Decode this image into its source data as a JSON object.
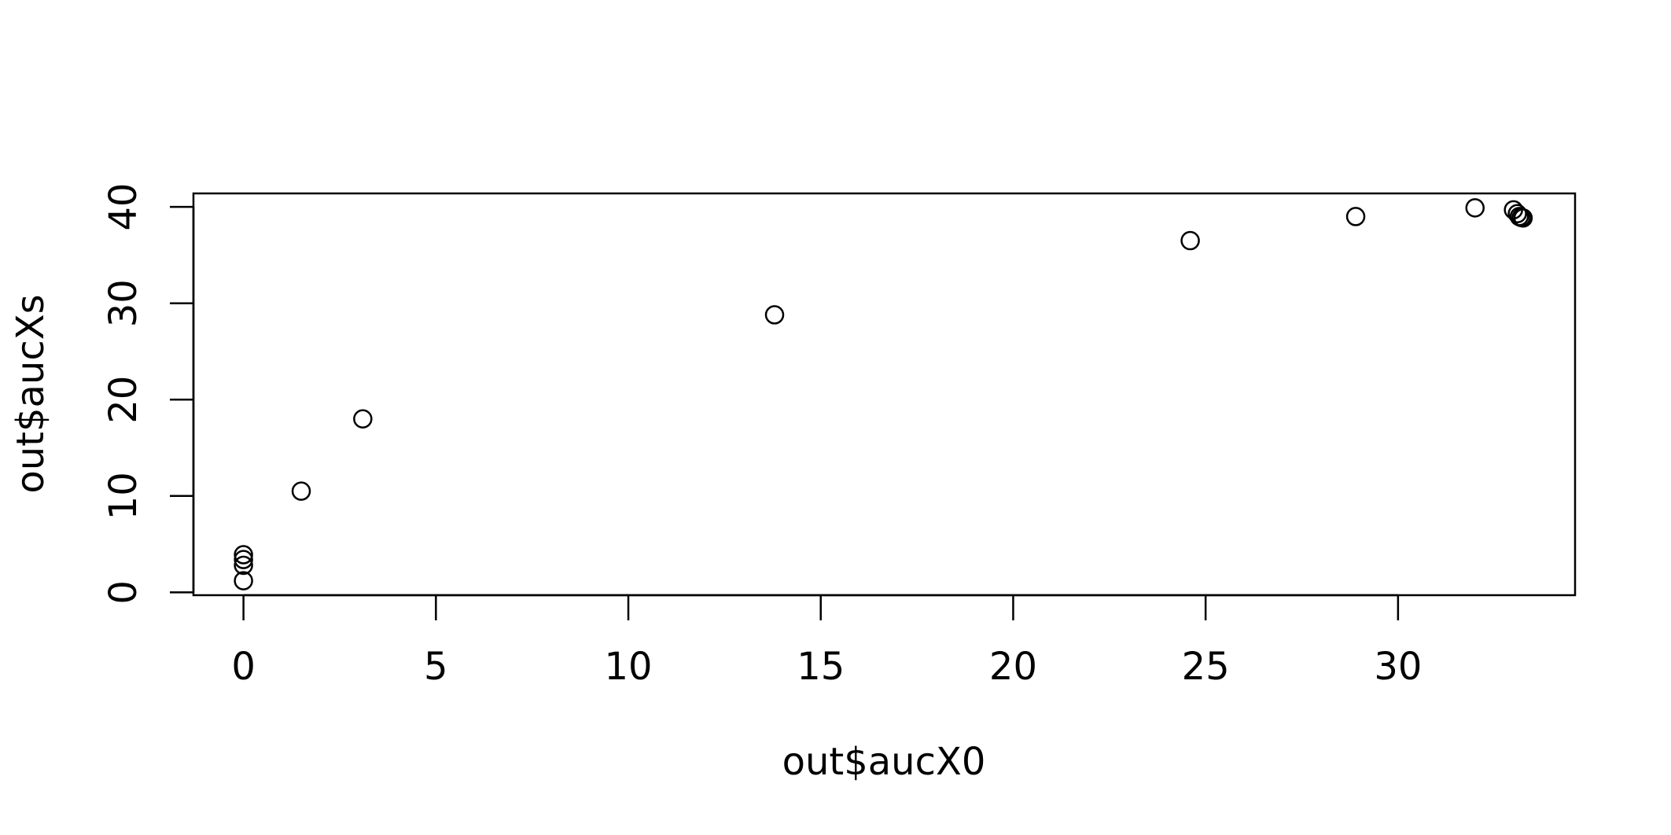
{
  "chart_data": {
    "type": "scatter",
    "title": "",
    "xlabel": "out$aucX0",
    "ylabel": "out$aucXs",
    "xlim": [
      -1.3,
      34.6
    ],
    "ylim": [
      -0.3,
      41.4
    ],
    "x_ticks": [
      0,
      5,
      10,
      15,
      20,
      25,
      30
    ],
    "y_ticks": [
      0,
      10,
      20,
      30,
      40
    ],
    "marker": "open-circle",
    "grid": false,
    "legend": "none",
    "points": [
      {
        "x": 0.0,
        "y": 1.2
      },
      {
        "x": 0.0,
        "y": 2.8
      },
      {
        "x": 0.0,
        "y": 3.4
      },
      {
        "x": 0.0,
        "y": 3.9
      },
      {
        "x": 1.5,
        "y": 10.5
      },
      {
        "x": 3.1,
        "y": 18.0
      },
      {
        "x": 13.8,
        "y": 28.8
      },
      {
        "x": 24.6,
        "y": 36.5
      },
      {
        "x": 28.9,
        "y": 39.0
      },
      {
        "x": 32.0,
        "y": 39.9
      },
      {
        "x": 33.0,
        "y": 39.7
      },
      {
        "x": 33.1,
        "y": 39.3
      },
      {
        "x": 33.15,
        "y": 39.0
      },
      {
        "x": 33.2,
        "y": 38.9
      },
      {
        "x": 33.25,
        "y": 38.85
      }
    ]
  }
}
